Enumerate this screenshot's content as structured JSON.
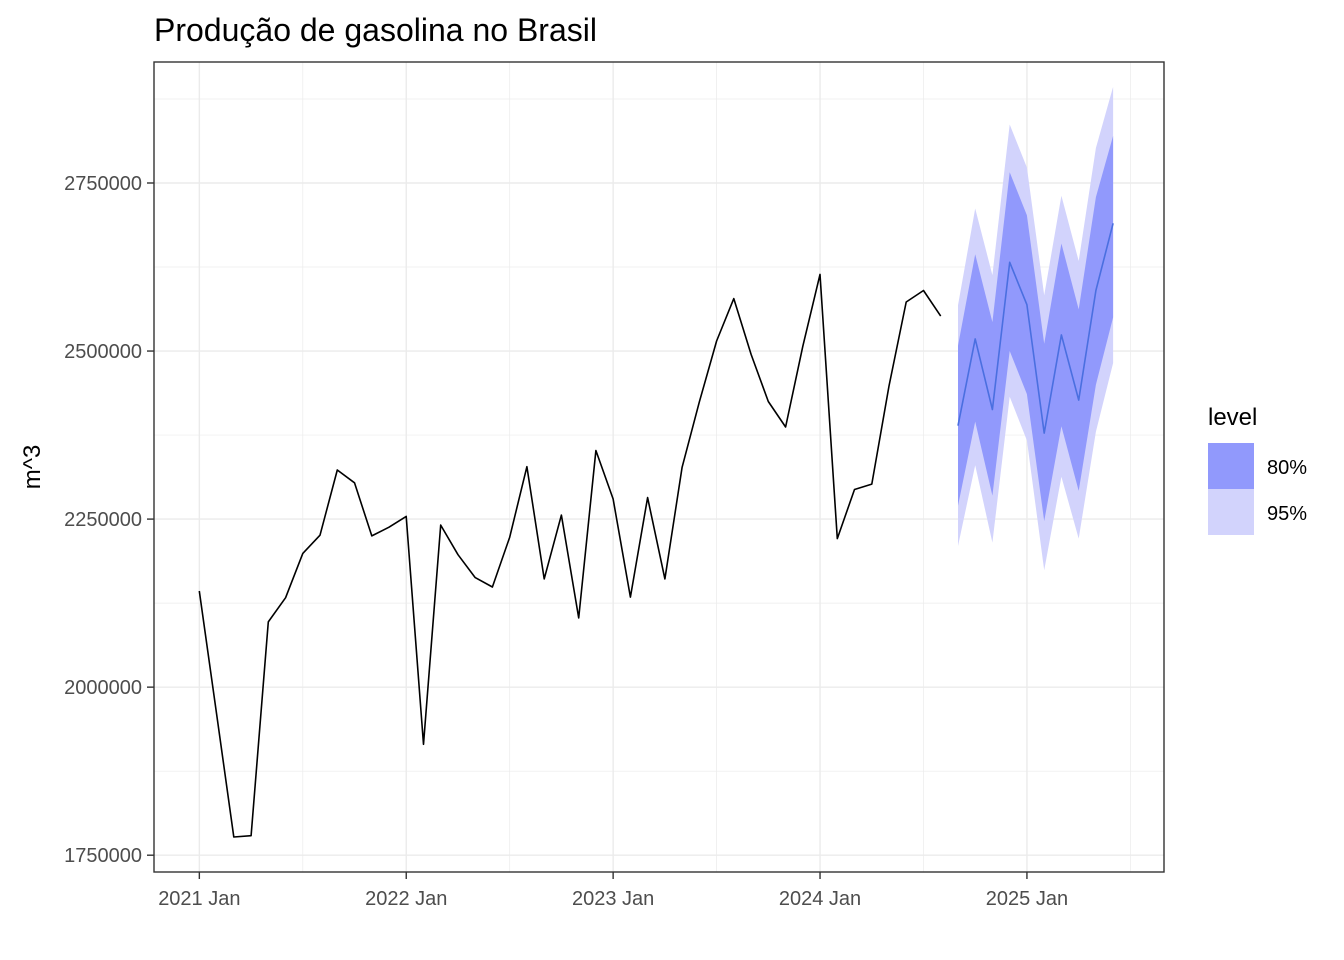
{
  "chart_data": {
    "type": "line",
    "title": "Produção de gasolina no Brasil",
    "xlabel": "",
    "ylabel": "m^3",
    "ylim": [
      1725000,
      2930000
    ],
    "x_tick_labels": [
      "2021 Jan",
      "2022 Jan",
      "2023 Jan",
      "2024 Jan",
      "2025 Jan"
    ],
    "y_tick_labels": [
      "1750000",
      "2000000",
      "2250000",
      "2500000",
      "2750000"
    ],
    "y_ticks": [
      1750000,
      2000000,
      2250000,
      2500000,
      2750000
    ],
    "grid": true,
    "legend": {
      "title": "level",
      "position": "right",
      "items": [
        {
          "label": "80%",
          "color": "#9199fc"
        },
        {
          "label": "95%",
          "color": "#d2d3fc"
        }
      ]
    },
    "colors": {
      "history": "#000000",
      "forecast_mean": "#4a6fe0",
      "band80": "#9199fc",
      "band95": "#d2d3fc",
      "grid": "#ebebeb",
      "panel_border": "#333333"
    },
    "history": {
      "start": "2021-01",
      "values": [
        2143000,
        1960000,
        1777000,
        1779000,
        2097000,
        2133000,
        2199000,
        2226000,
        2323000,
        2304000,
        2225000,
        2238000,
        2254000,
        1915000,
        2241000,
        2197000,
        2163000,
        2149000,
        2223000,
        2328000,
        2161000,
        2256000,
        2103000,
        2352000,
        2280000,
        2134000,
        2282000,
        2161000,
        2327000,
        2424000,
        2515000,
        2578000,
        2495000,
        2425000,
        2387000,
        2507000,
        2614000,
        2221000,
        2294000,
        2302000,
        2448000,
        2573000,
        2590000,
        2552000
      ]
    },
    "forecast": {
      "start": "2024-09",
      "mean": [
        2389000,
        2518000,
        2413000,
        2632000,
        2569000,
        2378000,
        2524000,
        2427000,
        2590000,
        2690000
      ],
      "lo80": [
        2270000,
        2395000,
        2285000,
        2500000,
        2436000,
        2247000,
        2388000,
        2292000,
        2450000,
        2550000
      ],
      "hi80": [
        2508000,
        2644000,
        2543000,
        2766000,
        2702000,
        2511000,
        2660000,
        2562000,
        2729000,
        2820000
      ],
      "lo95": [
        2210000,
        2330000,
        2215000,
        2432000,
        2367000,
        2174000,
        2313000,
        2221000,
        2380000,
        2482000
      ],
      "hi95": [
        2568000,
        2712000,
        2613000,
        2837000,
        2773000,
        2583000,
        2731000,
        2634000,
        2802000,
        2893000
      ]
    }
  }
}
